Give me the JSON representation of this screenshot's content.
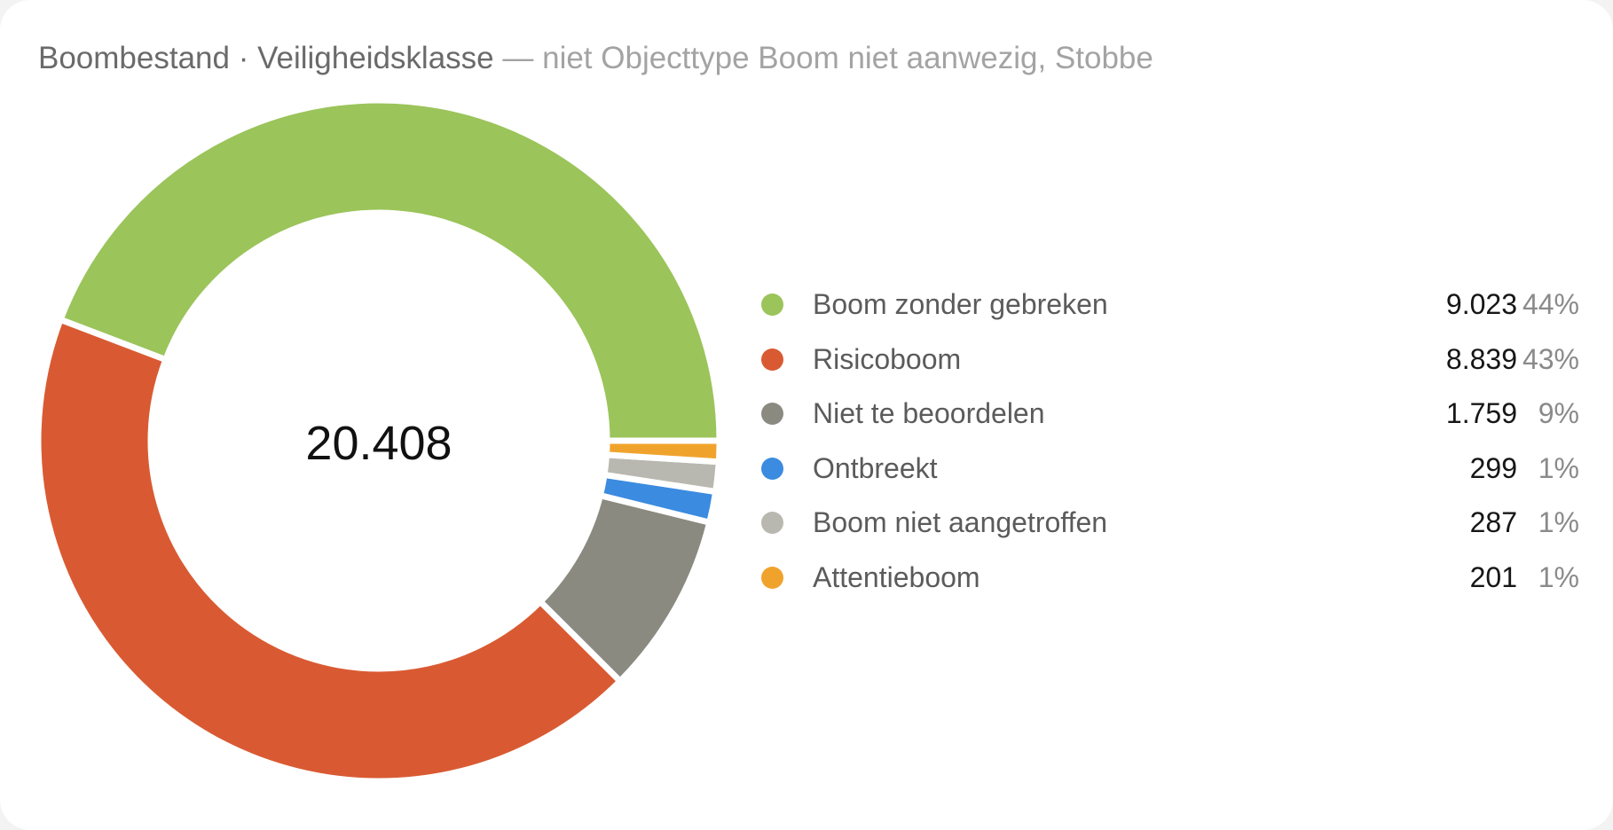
{
  "title": {
    "main": "Boombestand · Veiligheidsklasse",
    "filter": "— niet Objecttype Boom niet aanwezig, Stobbe"
  },
  "chart_data": {
    "type": "pie",
    "variant": "donut",
    "total": "20.408",
    "legend_position": "right",
    "slices": [
      {
        "name": "Boom zonder gebreken",
        "value": 9023,
        "value_label": "9.023",
        "percent_label": "44%",
        "color": "#9bc45a"
      },
      {
        "name": "Risicoboom",
        "value": 8839,
        "value_label": "8.839",
        "percent_label": "43%",
        "color": "#d95a32"
      },
      {
        "name": "Niet te beoordelen",
        "value": 1759,
        "value_label": "1.759",
        "percent_label": "9%",
        "color": "#8a8a80"
      },
      {
        "name": "Ontbreekt",
        "value": 299,
        "value_label": "299",
        "percent_label": "1%",
        "color": "#3b8be0"
      },
      {
        "name": "Boom niet aangetroffen",
        "value": 287,
        "value_label": "287",
        "percent_label": "1%",
        "color": "#b9b8b0"
      },
      {
        "name": "Attentieboom",
        "value": 201,
        "value_label": "201",
        "percent_label": "1%",
        "color": "#f0a32c"
      }
    ]
  }
}
